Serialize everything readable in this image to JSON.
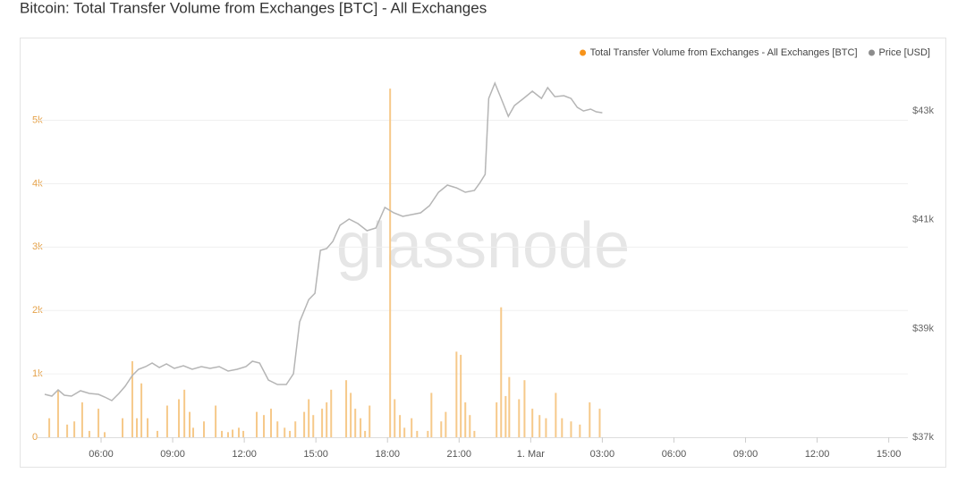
{
  "chart_data": {
    "type": "bar_line",
    "title": "Bitcoin: Total Transfer Volume from Exchanges [BTC] - All Exchanges",
    "watermark": "glassnode",
    "legend_position": "top-right",
    "grid": true,
    "xlim": [
      3.34,
      39.8
    ],
    "xticks": [
      {
        "value": 6,
        "label": "06:00"
      },
      {
        "value": 9,
        "label": "09:00"
      },
      {
        "value": 12,
        "label": "12:00"
      },
      {
        "value": 15,
        "label": "15:00"
      },
      {
        "value": 18,
        "label": "18:00"
      },
      {
        "value": 21,
        "label": "21:00"
      },
      {
        "value": 24,
        "label": "1. Mar"
      },
      {
        "value": 27,
        "label": "03:00"
      },
      {
        "value": 30,
        "label": "06:00"
      },
      {
        "value": 33,
        "label": "09:00"
      },
      {
        "value": 36,
        "label": "12:00"
      },
      {
        "value": 39,
        "label": "15:00"
      }
    ],
    "ylim": [
      0,
      5620
    ],
    "yticks": [
      0,
      {
        "value": 1000,
        "label": "1k"
      },
      {
        "value": 2000,
        "label": "2k"
      },
      {
        "value": 3000,
        "label": "3k"
      },
      {
        "value": 4000,
        "label": "4k"
      },
      {
        "value": 5000,
        "label": "5k"
      }
    ],
    "y2lim": [
      37000,
      43550
    ],
    "y2ticks": [
      {
        "value": 37000,
        "label": "$37k"
      },
      {
        "value": 39000,
        "label": "$39k"
      },
      {
        "value": 41000,
        "label": "$41k"
      },
      {
        "value": 43000,
        "label": "$43k"
      }
    ],
    "series": [
      {
        "name": "Total Transfer Volume from Exchanges - All Exchanges [BTC]",
        "color": "#f7931a",
        "bar_color": "#f6c98a",
        "axis": "y",
        "x": [
          3.83,
          4.2,
          4.58,
          4.88,
          5.21,
          5.51,
          5.89,
          6.15,
          6.9,
          7.31,
          7.5,
          7.69,
          7.95,
          8.36,
          8.77,
          9.26,
          9.49,
          9.71,
          9.86,
          10.31,
          10.8,
          11.06,
          11.32,
          11.51,
          11.77,
          11.96,
          12.52,
          12.82,
          13.12,
          13.39,
          13.69,
          13.91,
          14.14,
          14.51,
          14.7,
          14.89,
          15.26,
          15.45,
          15.64,
          16.27,
          16.46,
          16.65,
          16.87,
          17.06,
          17.25,
          18.11,
          18.3,
          18.52,
          18.71,
          19.01,
          19.24,
          19.69,
          19.84,
          20.25,
          20.44,
          20.89,
          21.07,
          21.26,
          21.45,
          21.64,
          22.57,
          22.76,
          22.95,
          23.1,
          23.51,
          23.74,
          24.07,
          24.37,
          24.64,
          25.05,
          25.31,
          25.69,
          26.06,
          26.47,
          26.89
        ],
        "values": [
          300,
          750,
          200,
          250,
          550,
          100,
          450,
          80,
          300,
          1200,
          300,
          850,
          300,
          100,
          500,
          600,
          750,
          400,
          150,
          250,
          500,
          100,
          80,
          120,
          150,
          100,
          400,
          350,
          450,
          250,
          150,
          100,
          250,
          400,
          600,
          350,
          450,
          550,
          750,
          900,
          700,
          450,
          300,
          100,
          500,
          5500,
          600,
          350,
          150,
          300,
          100,
          100,
          700,
          250,
          400,
          1350,
          1300,
          550,
          350,
          100,
          550,
          2050,
          650,
          950,
          600,
          900,
          450,
          350,
          300,
          700,
          300,
          250,
          200,
          550,
          450
        ]
      },
      {
        "name": "Price [USD]",
        "color": "#8c8c8c",
        "line_color": "#b5b5b5",
        "axis": "y2",
        "x": [
          3.64,
          3.94,
          4.2,
          4.46,
          4.76,
          5.14,
          5.51,
          5.89,
          6.15,
          6.45,
          6.75,
          7.01,
          7.31,
          7.57,
          7.87,
          8.14,
          8.44,
          8.74,
          9.07,
          9.45,
          9.82,
          10.2,
          10.57,
          10.95,
          11.32,
          11.7,
          12.07,
          12.34,
          12.64,
          13.01,
          13.39,
          13.76,
          14.06,
          14.32,
          14.7,
          14.96,
          15.19,
          15.45,
          15.71,
          16.01,
          16.39,
          16.76,
          17.14,
          17.51,
          17.89,
          18.26,
          18.64,
          19.01,
          19.39,
          19.76,
          20.14,
          20.51,
          20.89,
          21.26,
          21.64,
          21.86,
          22.09,
          22.24,
          22.5,
          22.76,
          23.06,
          23.32,
          23.7,
          24.07,
          24.45,
          24.71,
          25.01,
          25.39,
          25.69,
          25.95,
          26.21,
          26.51,
          26.74,
          27.0
        ],
        "values": [
          37789,
          37756,
          37871,
          37773,
          37756,
          37855,
          37805,
          37789,
          37740,
          37674,
          37805,
          37937,
          38134,
          38249,
          38298,
          38364,
          38282,
          38348,
          38266,
          38315,
          38249,
          38298,
          38266,
          38298,
          38216,
          38249,
          38298,
          38397,
          38364,
          38052,
          37970,
          37970,
          38167,
          39121,
          39532,
          39647,
          40436,
          40469,
          40600,
          40896,
          41011,
          40929,
          40798,
          40847,
          41225,
          41127,
          41061,
          41094,
          41127,
          41258,
          41504,
          41636,
          41586,
          41504,
          41537,
          41669,
          41833,
          43230,
          43510,
          43230,
          42901,
          43099,
          43230,
          43362,
          43230,
          43428,
          43263,
          43280,
          43230,
          43066,
          43000,
          43033,
          42984,
          42967
        ]
      }
    ]
  }
}
